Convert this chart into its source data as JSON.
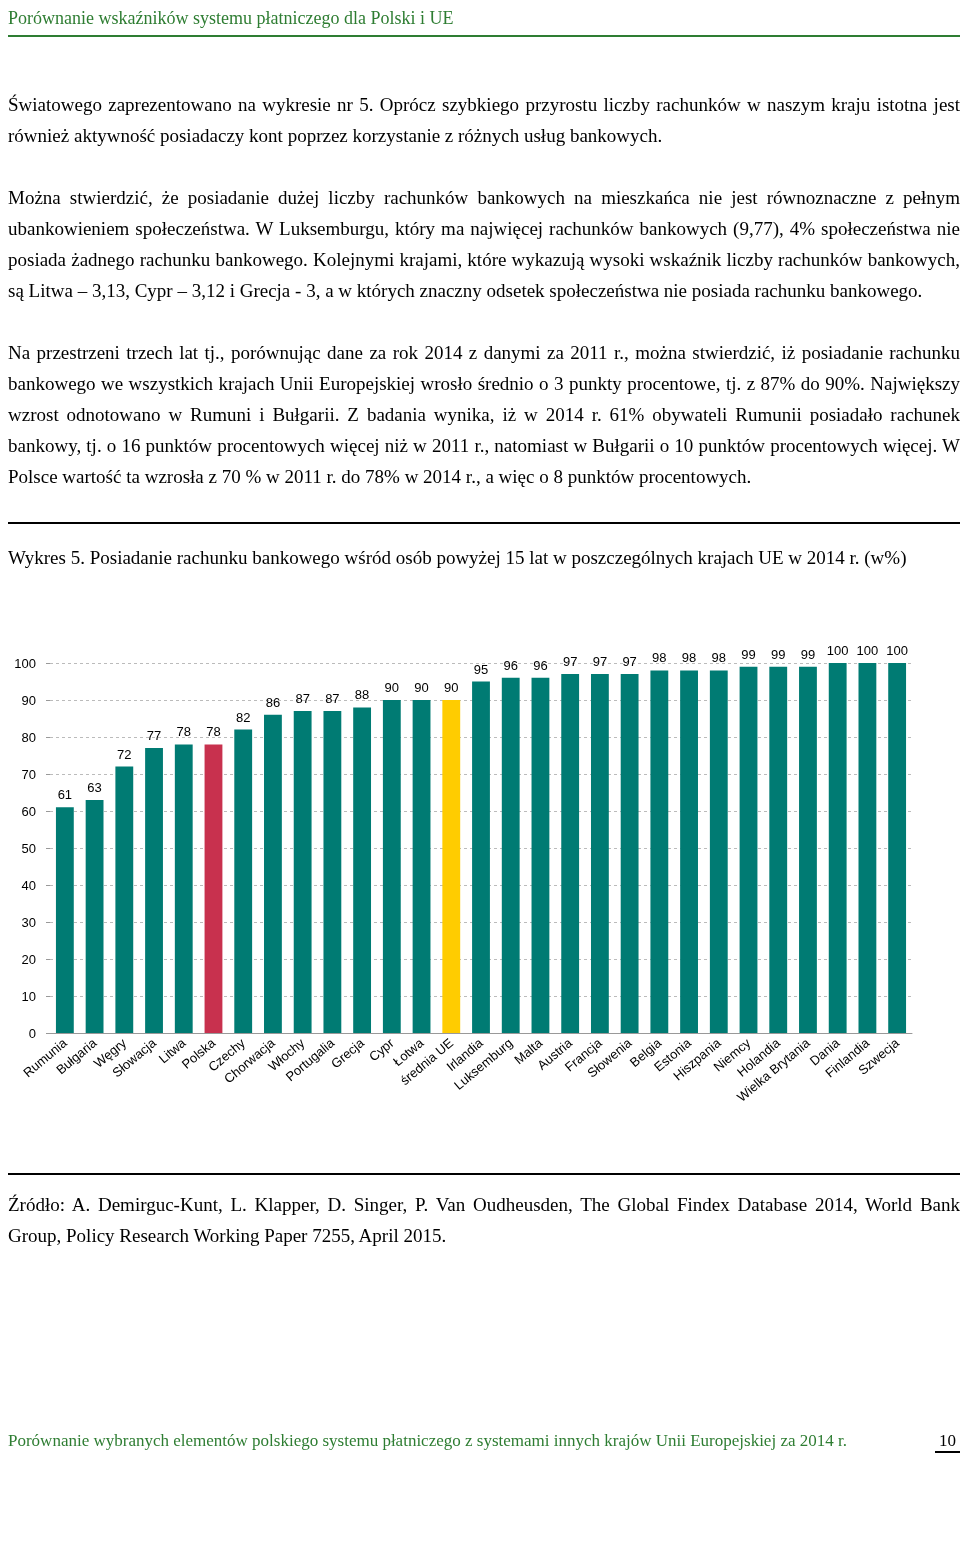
{
  "chart_data": {
    "type": "bar",
    "title": "Wykres 5. Posiadanie rachunku bankowego wśród osób powyżej 15 lat w poszczególnych krajach UE w 2014 r. (w%)",
    "categories": [
      "Rumunia",
      "Bułgaria",
      "Węgry",
      "Słowacja",
      "Litwa",
      "Polska",
      "Czechy",
      "Chorwacja",
      "Włochy",
      "Portugalia",
      "Grecja",
      "Cypr",
      "Łotwa",
      "średnia UE",
      "Irlandia",
      "Luksemburg",
      "Malta",
      "Austria",
      "Francja",
      "Słowenia",
      "Belgia",
      "Estonia",
      "Hiszpania",
      "Niemcy",
      "Holandia",
      "Wielka Brytania",
      "Dania",
      "Finlandia",
      "Szwecja"
    ],
    "values": [
      61,
      63,
      72,
      77,
      78,
      78,
      82,
      86,
      87,
      87,
      88,
      90,
      90,
      90,
      95,
      96,
      96,
      97,
      97,
      97,
      98,
      98,
      98,
      99,
      99,
      99,
      100,
      100,
      100
    ],
    "colors": [
      "#007b73",
      "#007b73",
      "#007b73",
      "#007b73",
      "#007b73",
      "#c8314e",
      "#007b73",
      "#007b73",
      "#007b73",
      "#007b73",
      "#007b73",
      "#007b73",
      "#007b73",
      "#ffcc00",
      "#007b73",
      "#007b73",
      "#007b73",
      "#007b73",
      "#007b73",
      "#007b73",
      "#007b73",
      "#007b73",
      "#007b73",
      "#007b73",
      "#007b73",
      "#007b73",
      "#007b73",
      "#007b73",
      "#007b73"
    ],
    "ylim": [
      0,
      100
    ],
    "yticks": [
      0,
      10,
      20,
      30,
      40,
      50,
      60,
      70,
      80,
      90,
      100
    ],
    "grid": "y",
    "data_labels": true,
    "annotations": [
      "Porównanie wskaźników systemu płatniczego dla Polski i UE",
      "Światowego zaprezentowano na wykresie nr 5. Oprócz szybkiego przyrostu liczby rachunków w naszym kraju istotna jest również aktywność posiadaczy kont poprzez korzystanie z różnych usług bankowych.",
      "Można stwierdzić, że posiadanie dużej liczby rachunków bankowych na mieszkańca nie jest równoznaczne z pełnym ubankowieniem społeczeństwa. W Luksemburgu, który ma najwięcej rachunków bankowych (9,77), 4% społeczeństwa nie posiada żadnego rachunku bankowego. Kolejnymi krajami, które wykazują wysoki wskaźnik liczby rachunków bankowych, są Litwa – 3,13, Cypr – 3,12 i Grecja - 3, a w których znaczny odsetek społeczeństwa nie posiada rachunku bankowego.",
      "Na przestrzeni trzech lat tj., porównując dane za rok 2014 z danymi za 2011 r., można stwierdzić, iż posiadanie rachunku bankowego we wszystkich krajach Unii Europejskiej wrosło średnio o 3 punkty procentowe, tj. z 87% do 90%. Największy wzrost odnotowano w Rumuni i Bułgarii. Z badania wynika, iż w 2014 r. 61% obywateli Rumunii posiadało rachunek bankowy, tj. o 16 punktów procentowych więcej niż w 2011 r., natomiast w Bułgarii o 10 punktów procentowych więcej. W Polsce wartość ta wzrosła z 70 % w 2011 r. do 78% w 2014 r., a więc o 8 punktów procentowych.",
      "Źródło: A. Demirguc-Kunt, L. Klapper, D. Singer, P. Van Oudheusden, The Global Findex Database 2014, World Bank Group, Policy Research Working Paper 7255, April 2015.",
      "Porównanie wybranych elementów polskiego systemu płatniczego z systemami innych krajów Unii Europejskiej za 2014 r.",
      "10"
    ]
  }
}
